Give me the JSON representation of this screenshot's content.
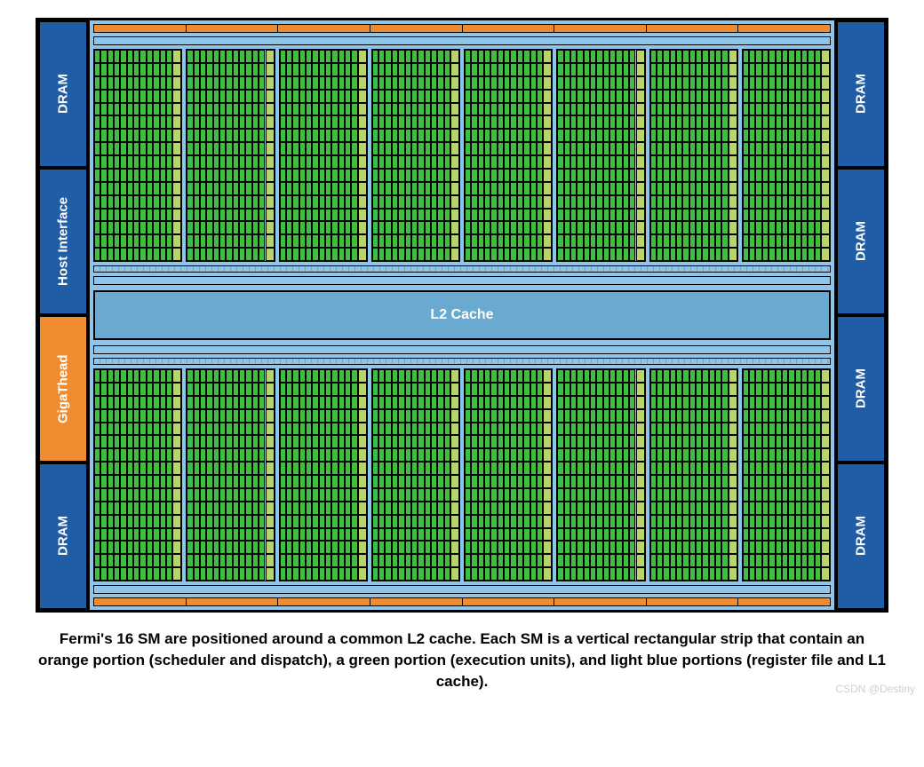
{
  "colors": {
    "dram": "#1f5da6",
    "host_interface": "#1f5da6",
    "gigathread": "#f08b2f",
    "lightblue": "#8fc5e8",
    "l2cache": "#6aa9d0",
    "orange": "#f08b2f",
    "green": "#3fbf3f",
    "olive": "#b9d56a",
    "border": "#000000",
    "white": "#ffffff",
    "watermark": "#cfcfcf"
  },
  "left_side": [
    {
      "label": "DRAM",
      "bg": "dram"
    },
    {
      "label": "Host Interface",
      "bg": "host_interface"
    },
    {
      "label": "GigaThead",
      "bg": "gigathread"
    },
    {
      "label": "DRAM",
      "bg": "dram"
    }
  ],
  "right_side": [
    {
      "label": "DRAM",
      "bg": "dram"
    },
    {
      "label": "DRAM",
      "bg": "dram"
    },
    {
      "label": "DRAM",
      "bg": "dram"
    },
    {
      "label": "DRAM",
      "bg": "dram"
    }
  ],
  "l2cache_label": "L2 Cache",
  "sm_per_row": 8,
  "sm_rows": 2,
  "grid_rows": 16,
  "green_cols": 12,
  "orange_segments": 8,
  "caption": "Fermi's 16 SM are positioned around a common L2 cache. Each SM is a vertical rectangular strip that contain an orange portion (scheduler and dispatch), a green portion (execution units), and light blue portions (register file and L1 cache).",
  "watermark": "CSDN @Destiny"
}
